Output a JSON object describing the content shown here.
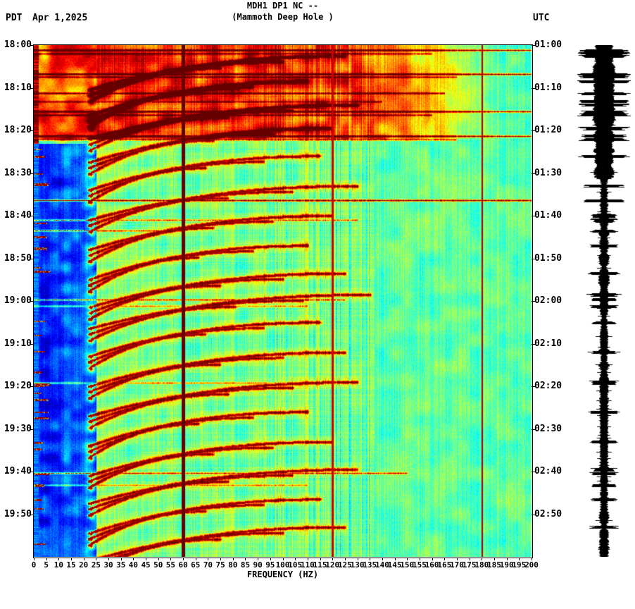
{
  "header": {
    "title_line1": "MDH1 DP1 NC --",
    "title_line2": "(Mammoth Deep Hole )",
    "tz_left": "PDT",
    "date": "Apr 1,2025",
    "tz_right": "UTC"
  },
  "axes": {
    "xlabel": "FREQUENCY (HZ)",
    "x_tick_labels": [
      "0",
      "5",
      "10",
      "15",
      "20",
      "25",
      "30",
      "35",
      "40",
      "45",
      "50",
      "55",
      "60",
      "65",
      "70",
      "75",
      "80",
      "85",
      "90",
      "95",
      "100",
      "105",
      "110",
      "115",
      "120",
      "125",
      "130",
      "135",
      "140",
      "145",
      "150",
      "155",
      "160",
      "165",
      "170",
      "175",
      "180",
      "185",
      "190",
      "195",
      "200"
    ],
    "left_time_labels": [
      "18:00",
      "18:10",
      "18:20",
      "18:30",
      "18:40",
      "18:50",
      "19:00",
      "19:10",
      "19:20",
      "19:30",
      "19:40",
      "19:50"
    ],
    "right_time_labels": [
      "01:00",
      "01:10",
      "01:20",
      "01:30",
      "01:40",
      "01:50",
      "02:00",
      "02:10",
      "02:20",
      "02:30",
      "02:40",
      "02:50"
    ]
  },
  "chart_data": {
    "type": "heatmap",
    "subtype": "seismic-spectrogram",
    "title": "MDH1 DP1 NC -- (Mammoth Deep Hole )",
    "xlabel": "FREQUENCY (HZ)",
    "x_range_hz": [
      0,
      200
    ],
    "duration_min": 120,
    "left_time_axis": {
      "tz": "PDT",
      "start": "18:00",
      "end": "19:50",
      "step_min": 10
    },
    "right_time_axis": {
      "tz": "UTC",
      "start": "01:00",
      "end": "02:50",
      "step_min": 10
    },
    "colormap": "jet",
    "artifact_lines_hz": [
      60,
      120,
      180
    ],
    "high_energy_band": {
      "start_min": 0,
      "end_min": 22
    },
    "quiet_low_freq_band": {
      "fmin_hz": 2,
      "fmax_hz": 25,
      "start_min": 23
    },
    "event_fmin_hz": 22,
    "event_duration_min": 8,
    "events_min": [
      2.5,
      8.5,
      14,
      19.5,
      26,
      33,
      40,
      47,
      53.5,
      58.5,
      65,
      72,
      79,
      86,
      93,
      99.5,
      106.5,
      113
    ],
    "event_fmax_hz": [
      125,
      110,
      130,
      120,
      115,
      130,
      120,
      110,
      125,
      135,
      115,
      125,
      130,
      110,
      120,
      130,
      115,
      125
    ],
    "horiz_lines_min": [
      1.2,
      2.0,
      6.8,
      7.4,
      11.3,
      13.2,
      15.6,
      16.3,
      21.3,
      22.1,
      36.4,
      41.0,
      43.5,
      59.6,
      61.2,
      79.2,
      100.4,
      103.2
    ],
    "horiz_line_amp": [
      0.6,
      0.35,
      0.6,
      0.35,
      0.45,
      0.3,
      0.55,
      0.35,
      0.6,
      0.4,
      0.62,
      0.4,
      0.45,
      0.45,
      0.3,
      0.35,
      0.45,
      0.3
    ],
    "horiz_line_fmax_hz": [
      200,
      160,
      200,
      170,
      165,
      140,
      200,
      160,
      200,
      170,
      200,
      130,
      60,
      125,
      110,
      120,
      150,
      110
    ]
  },
  "colors": {
    "background": "#ffffff",
    "text": "#000000",
    "mains_line": "#640000",
    "trace": "#000000"
  }
}
